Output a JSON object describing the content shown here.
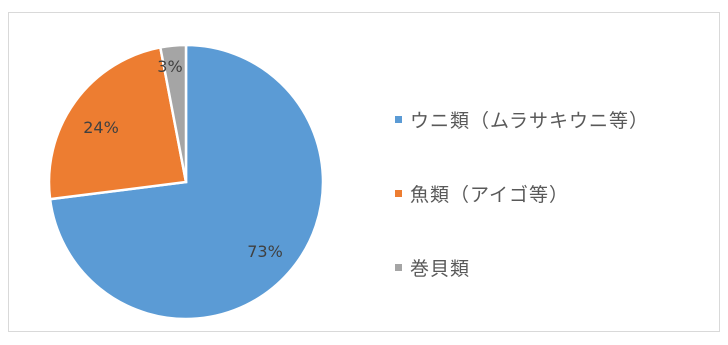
{
  "chart_data": {
    "type": "pie",
    "title": "",
    "categories": [
      "ウニ類（ムラサキウニ等）",
      "魚類（アイゴ等）",
      "巻貝類"
    ],
    "values": [
      73,
      24,
      3
    ],
    "value_labels": [
      "73%",
      "24%",
      "3%"
    ],
    "colors": [
      "#5b9bd5",
      "#ed7d31",
      "#a5a5a5"
    ],
    "legend_position": "right",
    "start_angle": "12 o'clock, clockwise"
  }
}
